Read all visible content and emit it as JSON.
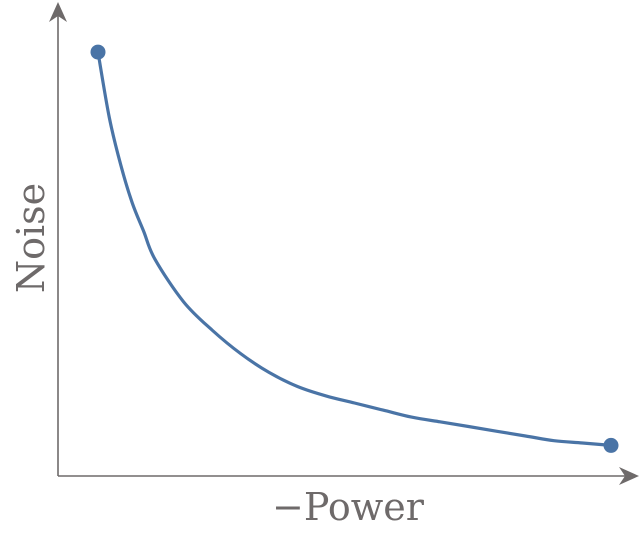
{
  "chart_data": {
    "type": "line",
    "title": "",
    "xlabel": "−Power",
    "ylabel": "Noise",
    "grid": false,
    "legend": "none",
    "xlim": [
      0,
      1
    ],
    "ylim": [
      0,
      1
    ],
    "series": [
      {
        "color": "#4a74a6",
        "x": [
          0.1,
          0.12,
          0.14,
          0.16,
          0.18,
          0.2,
          0.25,
          0.3,
          0.35,
          0.4,
          0.45,
          0.5,
          0.55,
          0.6,
          0.65,
          0.7,
          0.75,
          0.8,
          0.85,
          0.9,
          0.95,
          1.0
        ],
        "y": [
          0.9,
          0.76,
          0.66,
          0.58,
          0.52,
          0.46,
          0.37,
          0.31,
          0.26,
          0.22,
          0.19,
          0.17,
          0.155,
          0.14,
          0.125,
          0.115,
          0.105,
          0.095,
          0.085,
          0.075,
          0.07,
          0.065
        ],
        "endpoint_markers": true
      }
    ]
  }
}
